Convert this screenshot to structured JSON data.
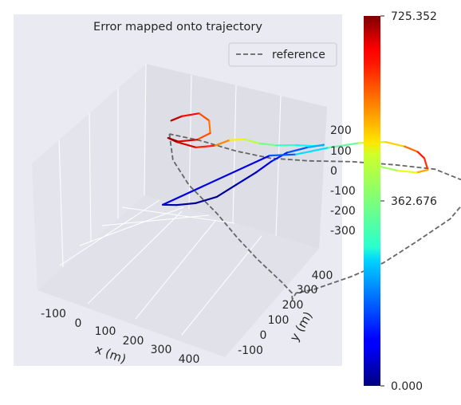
{
  "chart_data": {
    "type": "line",
    "projection": "3d",
    "title": "Error mapped onto trajectory",
    "xlabel": "x (m)",
    "ylabel": "y (m)",
    "zlabel": "",
    "x_ticks": [
      -100,
      0,
      100,
      200,
      300,
      400
    ],
    "y_ticks": [
      -100,
      0,
      100,
      200,
      300,
      400
    ],
    "z_ticks": [
      -300,
      -200,
      -100,
      0,
      100,
      200
    ],
    "legend": {
      "entries": [
        {
          "label": "reference",
          "style": "dashed",
          "color": "#666666"
        }
      ],
      "placement": "upper-right"
    },
    "colorbar": {
      "colormap": "jet",
      "min": 0.0,
      "mid": 362.676,
      "max": 725.352,
      "tick_labels": [
        "0.000",
        "362.676",
        "725.352"
      ]
    },
    "grid": true,
    "series": [
      {
        "name": "reference",
        "points": [
          [
            -130,
            60,
            140
          ],
          [
            -110,
            40,
            60
          ],
          [
            -60,
            20,
            0
          ],
          [
            20,
            0,
            -60
          ],
          [
            80,
            -20,
            -110
          ],
          [
            140,
            -40,
            -150
          ],
          [
            210,
            -60,
            -190
          ],
          [
            240,
            -70,
            -210
          ],
          [
            230,
            -50,
            -260
          ],
          [
            210,
            0,
            -290
          ],
          [
            230,
            40,
            -300
          ],
          [
            290,
            90,
            -260
          ],
          [
            340,
            140,
            -220
          ],
          [
            380,
            200,
            -170
          ],
          [
            420,
            280,
            -120
          ],
          [
            430,
            330,
            -80
          ],
          [
            410,
            360,
            -40
          ],
          [
            360,
            320,
            20
          ],
          [
            300,
            260,
            60
          ],
          [
            230,
            200,
            90
          ],
          [
            160,
            140,
            110
          ],
          [
            90,
            100,
            120
          ],
          [
            20,
            80,
            130
          ],
          [
            -60,
            70,
            140
          ],
          [
            -130,
            60,
            140
          ]
        ]
      },
      {
        "name": "trajectory",
        "color_by": "error",
        "points": [
          [
            -120,
            50,
            210,
            700
          ],
          [
            -100,
            60,
            230,
            660
          ],
          [
            -70,
            80,
            240,
            600
          ],
          [
            -40,
            70,
            235,
            560
          ],
          [
            -20,
            40,
            220,
            540
          ],
          [
            -40,
            20,
            200,
            620
          ],
          [
            -80,
            10,
            180,
            700
          ],
          [
            -110,
            20,
            170,
            720
          ],
          [
            -100,
            40,
            140,
            680
          ],
          [
            -60,
            50,
            130,
            640
          ],
          [
            -20,
            60,
            150,
            580
          ],
          [
            10,
            70,
            180,
            500
          ],
          [
            40,
            80,
            190,
            430
          ],
          [
            70,
            90,
            180,
            380
          ],
          [
            100,
            110,
            170,
            330
          ],
          [
            130,
            140,
            160,
            290
          ],
          [
            150,
            170,
            140,
            260
          ],
          [
            160,
            200,
            120,
            280
          ],
          [
            150,
            220,
            100,
            240
          ],
          [
            120,
            200,
            90,
            180
          ],
          [
            90,
            170,
            80,
            130
          ],
          [
            70,
            140,
            60,
            90
          ],
          [
            50,
            110,
            30,
            50
          ],
          [
            20,
            80,
            -10,
            20
          ],
          [
            -10,
            50,
            -50,
            10
          ],
          [
            -50,
            30,
            -80,
            15
          ],
          [
            -90,
            20,
            -100,
            25
          ],
          [
            -120,
            15,
            -110,
            30
          ],
          [
            60,
            150,
            70,
            110
          ],
          [
            100,
            190,
            60,
            200
          ],
          [
            150,
            240,
            70,
            300
          ],
          [
            200,
            280,
            80,
            380
          ],
          [
            240,
            320,
            70,
            450
          ],
          [
            270,
            350,
            40,
            520
          ],
          [
            290,
            370,
            10,
            600
          ],
          [
            300,
            380,
            -20,
            640
          ],
          [
            320,
            360,
            -40,
            560
          ],
          [
            310,
            330,
            -30,
            470
          ],
          [
            280,
            300,
            -10,
            410
          ],
          [
            250,
            270,
            20,
            370
          ]
        ]
      }
    ]
  }
}
